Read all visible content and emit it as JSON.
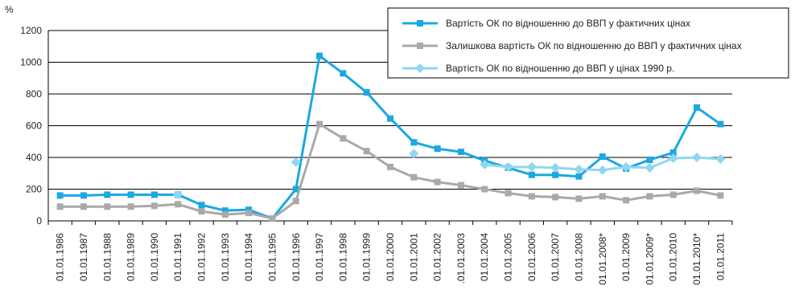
{
  "chart_data": {
    "type": "line",
    "ylabel": "%",
    "ylim": [
      0,
      1200
    ],
    "yticks": [
      "0",
      "200",
      "400",
      "600",
      "800",
      "1000",
      "1200"
    ],
    "grid": "horizontal",
    "legend_position": "top-right",
    "categories": [
      "01.01.1986",
      "01.01.1987",
      "01.01.1988",
      "01.01.1989",
      "01.01.1990",
      "01.01.1991",
      "01.01.1992",
      "01.01.1993",
      "01.01.1994",
      "01.01.1995",
      "01.01.1996",
      "01.01.1997",
      "01.01.1998",
      "01.01.1999",
      "01.01.2000",
      "01.01.2001",
      "01.01.2002",
      ".01.01.2003",
      "01.01.2004",
      "01.01.2005",
      "01.01.2006",
      "01.01.2007",
      "01.01.2008",
      "01.01.2008*",
      "01.01.2009",
      "01.01.2009*",
      "01.01.2010",
      "01.01.2010*",
      "01.01.2011"
    ],
    "series": [
      {
        "name": "Вартість ОК по відношенню до ВВП у фактичних цінах",
        "color": "#1ba8e0",
        "marker": "square",
        "values": [
          160,
          160,
          165,
          165,
          165,
          165,
          100,
          65,
          70,
          15,
          200,
          1040,
          930,
          810,
          645,
          495,
          455,
          435,
          380,
          335,
          290,
          290,
          280,
          405,
          330,
          385,
          430,
          715,
          610
        ]
      },
      {
        "name": "Залишкова вартість ОК по відношенню до ВВП у фактичних цінах",
        "color": "#a9a9a9",
        "marker": "square",
        "values": [
          90,
          90,
          90,
          90,
          95,
          105,
          60,
          40,
          50,
          15,
          125,
          610,
          520,
          440,
          340,
          275,
          245,
          225,
          200,
          175,
          155,
          150,
          140,
          155,
          130,
          155,
          165,
          190,
          160
        ]
      },
      {
        "name": "Вартість ОК по відношенню до ВВП у цінах 1990 р.",
        "color": "#8fd6f2",
        "marker": "diamond",
        "segments": [
          [
            5,
            5
          ],
          [
            10,
            10
          ],
          [
            15,
            15
          ],
          [
            18,
            28
          ]
        ],
        "values": [
          null,
          null,
          null,
          null,
          null,
          165,
          null,
          null,
          null,
          null,
          370,
          null,
          null,
          null,
          null,
          425,
          null,
          null,
          355,
          340,
          340,
          335,
          325,
          320,
          340,
          335,
          395,
          400,
          390
        ]
      }
    ]
  }
}
